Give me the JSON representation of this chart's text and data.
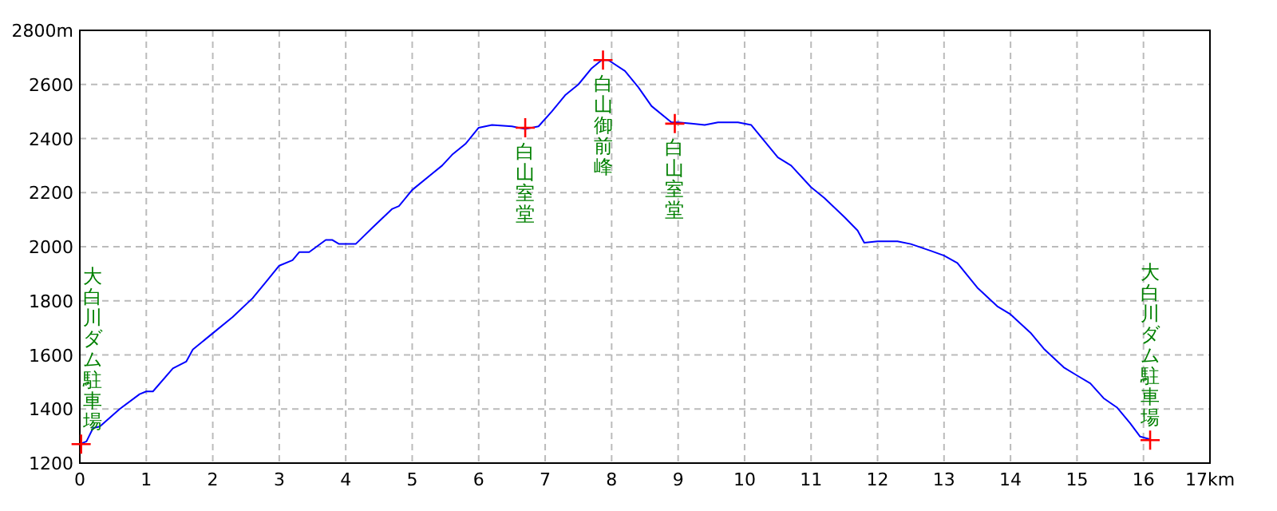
{
  "chart_data": {
    "type": "line",
    "xlim": [
      0,
      17
    ],
    "ylim": [
      1200,
      2800
    ],
    "xticks": [
      0,
      1,
      2,
      3,
      4,
      5,
      6,
      7,
      8,
      9,
      10,
      11,
      12,
      13,
      14,
      15,
      16,
      {
        "value": 17,
        "label": "17km"
      }
    ],
    "yticks": [
      1200,
      1400,
      1600,
      1800,
      2000,
      2200,
      2400,
      2600,
      {
        "value": 2800,
        "label": "2800m"
      }
    ],
    "grid": true,
    "series": [
      {
        "type": "line",
        "color": "#0000ff",
        "x": [
          0,
          0.1,
          0.2,
          0.3,
          0.6,
          0.9,
          1.0,
          1.1,
          1.4,
          1.6,
          1.7,
          2.0,
          2.3,
          2.6,
          2.8,
          3.0,
          3.2,
          3.3,
          3.45,
          3.7,
          3.8,
          3.9,
          4.15,
          4.4,
          4.7,
          4.8,
          5.0,
          5.3,
          5.45,
          5.6,
          5.8,
          6.0,
          6.2,
          6.5,
          6.7,
          6.9,
          7.1,
          7.3,
          7.5,
          7.7,
          7.85,
          7.95,
          8.2,
          8.4,
          8.6,
          8.9,
          9.0,
          9.2,
          9.4,
          9.6,
          9.9,
          10.1,
          10.3,
          10.5,
          10.7,
          11.0,
          11.2,
          11.5,
          11.7,
          11.8,
          12.0,
          12.3,
          12.5,
          12.8,
          13.0,
          13.2,
          13.5,
          13.8,
          14.0,
          14.3,
          14.5,
          14.8,
          15.0,
          15.2,
          15.4,
          15.6,
          15.8,
          15.95,
          16.1
        ],
        "values": [
          1270,
          1280,
          1330,
          1335,
          1400,
          1455,
          1465,
          1465,
          1550,
          1575,
          1620,
          1680,
          1740,
          1810,
          1870,
          1930,
          1950,
          1980,
          1980,
          2025,
          2025,
          2010,
          2010,
          2070,
          2140,
          2150,
          2210,
          2270,
          2300,
          2340,
          2380,
          2440,
          2450,
          2445,
          2435,
          2445,
          2500,
          2560,
          2600,
          2660,
          2690,
          2690,
          2650,
          2590,
          2520,
          2460,
          2460,
          2455,
          2450,
          2460,
          2460,
          2450,
          2390,
          2330,
          2300,
          2220,
          2180,
          2110,
          2060,
          2015,
          2020,
          2020,
          2010,
          1985,
          1967,
          1940,
          1849,
          1780,
          1750,
          1682,
          1623,
          1554,
          1524,
          1495,
          1440,
          1406,
          1347,
          1298,
          1288
        ]
      },
      {
        "type": "scatter",
        "marker": "cross",
        "color": "#ff0000",
        "x": [
          0.02,
          6.7,
          7.87,
          8.95,
          16.1
        ],
        "values": [
          1270,
          2440,
          2690,
          2455,
          1285
        ]
      }
    ],
    "annotations": [
      {
        "text": "大白川ダム駐車場",
        "x": 0.02,
        "y": 1270
      },
      {
        "text": "白山室堂",
        "x": 6.7,
        "y": 2440
      },
      {
        "text": "白山御前峰",
        "x": 7.87,
        "y": 2690
      },
      {
        "text": "白山室堂",
        "x": 8.95,
        "y": 2455
      },
      {
        "text": "大白川ダム駐車場",
        "x": 16.1,
        "y": 1285
      }
    ]
  }
}
